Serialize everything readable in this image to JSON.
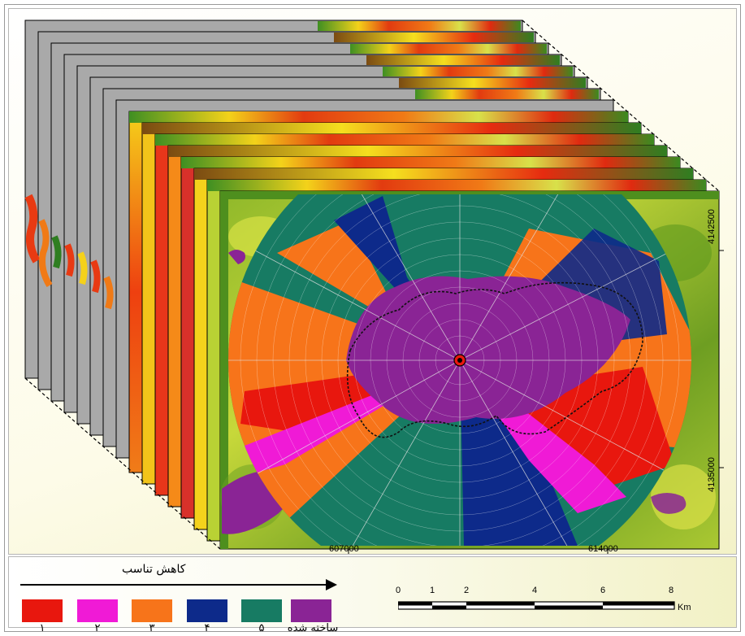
{
  "map": {
    "coordinates": {
      "x_ticks": [
        "607000",
        "614000"
      ],
      "y_ticks": [
        "4142500",
        "4135000"
      ]
    },
    "colors": {
      "class_1": "#e8170e",
      "class_2": "#f01ad6",
      "class_3": "#f7741a",
      "class_4": "#0d2a8a",
      "class_5": "#177b63",
      "built_up": "#8a2495"
    }
  },
  "legend": {
    "arrow_label": "کاهش تناسب",
    "items": [
      {
        "label": "۱",
        "color": "#e8170e"
      },
      {
        "label": "۲",
        "color": "#f01ad6"
      },
      {
        "label": "۳",
        "color": "#f7741a"
      },
      {
        "label": "۴",
        "color": "#0d2a8a"
      },
      {
        "label": "۵",
        "color": "#177b63"
      },
      {
        "label": "ساخته شده",
        "color": "#8a2495"
      }
    ]
  },
  "scale_bar": {
    "ticks": [
      "0",
      "1",
      "2",
      "4",
      "6",
      "8"
    ],
    "unit": "Km"
  }
}
